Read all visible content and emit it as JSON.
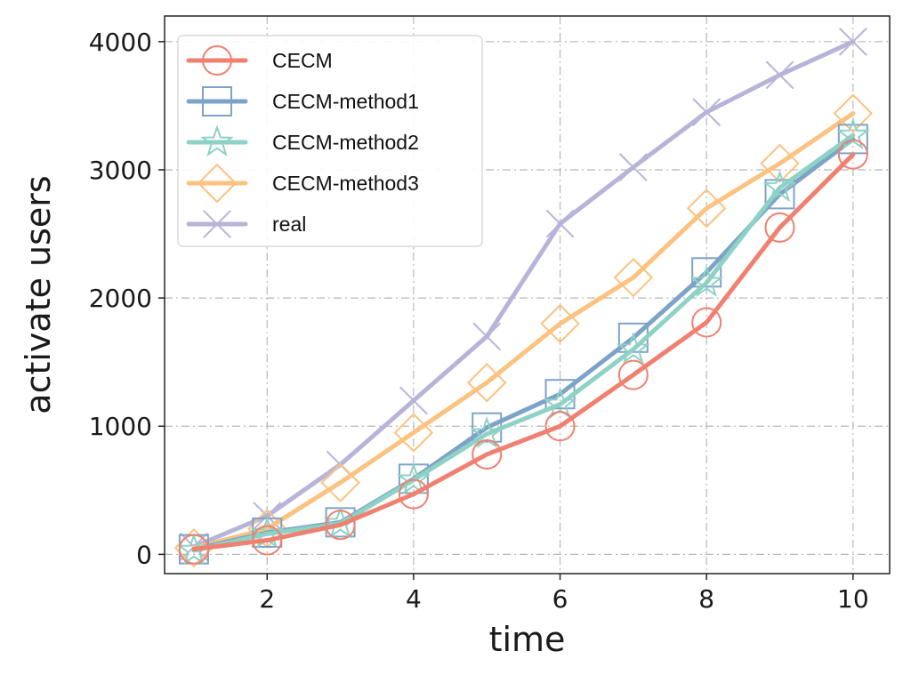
{
  "chart_data": {
    "type": "line",
    "title": "",
    "xlabel": "time",
    "ylabel": "activate users",
    "x": [
      1,
      2,
      3,
      4,
      5,
      6,
      7,
      8,
      9,
      10
    ],
    "xlim": [
      0.6,
      10.5
    ],
    "ylim": [
      -150,
      4200
    ],
    "xticks": [
      2,
      4,
      6,
      8,
      10
    ],
    "yticks": [
      0,
      1000,
      2000,
      3000,
      4000
    ],
    "grid": true,
    "legend_position": "top-left",
    "series": [
      {
        "name": "real",
        "color": "#b7b4d9",
        "marker": "x",
        "values": [
          60,
          300,
          700,
          1200,
          1700,
          2580,
          3020,
          3450,
          3740,
          4000
        ]
      },
      {
        "name": "CECM-method3",
        "color": "#fcc27f",
        "marker": "diamond",
        "values": [
          50,
          200,
          560,
          950,
          1340,
          1800,
          2160,
          2700,
          3050,
          3440
        ]
      },
      {
        "name": "CECM-method1",
        "color": "#7ea3c9",
        "marker": "square",
        "values": [
          40,
          170,
          250,
          590,
          990,
          1250,
          1690,
          2200,
          2810,
          3240
        ]
      },
      {
        "name": "CECM-method2",
        "color": "#8dd2c4",
        "marker": "star",
        "values": [
          30,
          160,
          240,
          580,
          940,
          1170,
          1600,
          2120,
          2860,
          3270
        ]
      },
      {
        "name": "CECM",
        "color": "#f0806f",
        "marker": "circle",
        "values": [
          40,
          110,
          230,
          470,
          780,
          1000,
          1400,
          1810,
          2550,
          3120
        ]
      }
    ],
    "legend_order": [
      "CECM",
      "CECM-method1",
      "CECM-method2",
      "CECM-method3",
      "real"
    ]
  }
}
